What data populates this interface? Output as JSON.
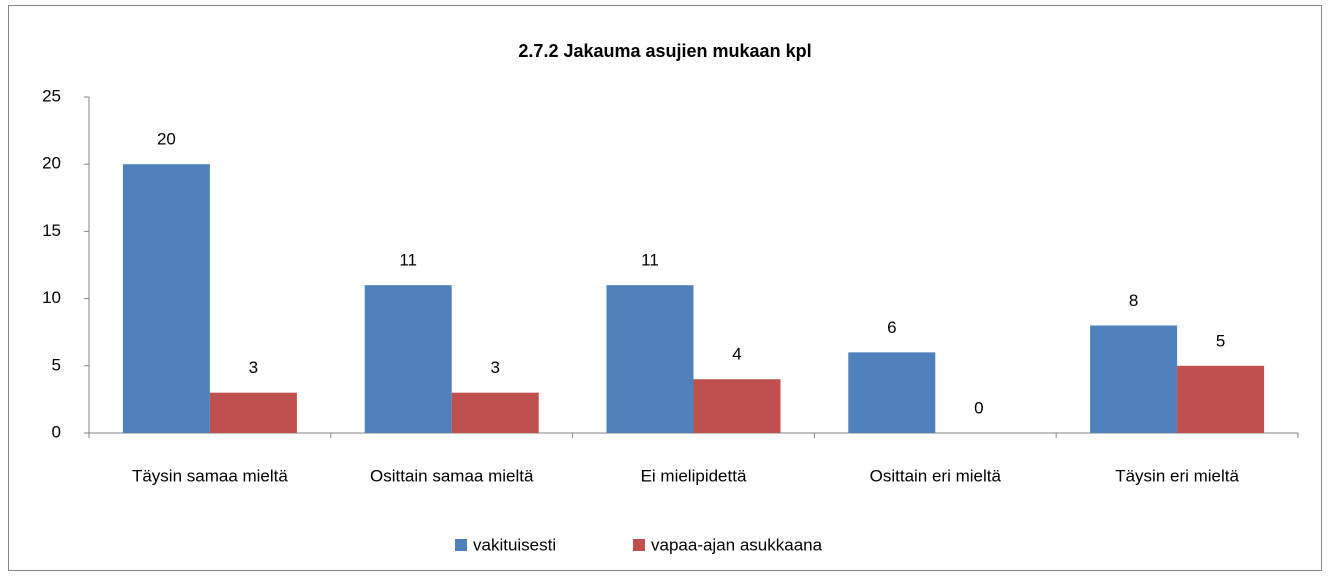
{
  "chart_data": {
    "type": "bar",
    "title": "2.7.2 Jakauma asujien mukaan kpl",
    "categories": [
      "Täysin samaa mieltä",
      "Osittain samaa mieltä",
      "Ei mielipidettä",
      "Osittain eri mieltä",
      "Täysin eri mieltä"
    ],
    "series": [
      {
        "name": "vakituisesti",
        "color": "#4f81bd",
        "values": [
          20,
          11,
          11,
          6,
          8
        ]
      },
      {
        "name": "vapaa-ajan asukkaana",
        "color": "#c0504d",
        "values": [
          3,
          3,
          4,
          0,
          5
        ]
      }
    ],
    "ylim": [
      0,
      25
    ],
    "yticks": [
      0,
      5,
      10,
      15,
      20,
      25
    ],
    "grid": false,
    "legend": "bottom"
  }
}
